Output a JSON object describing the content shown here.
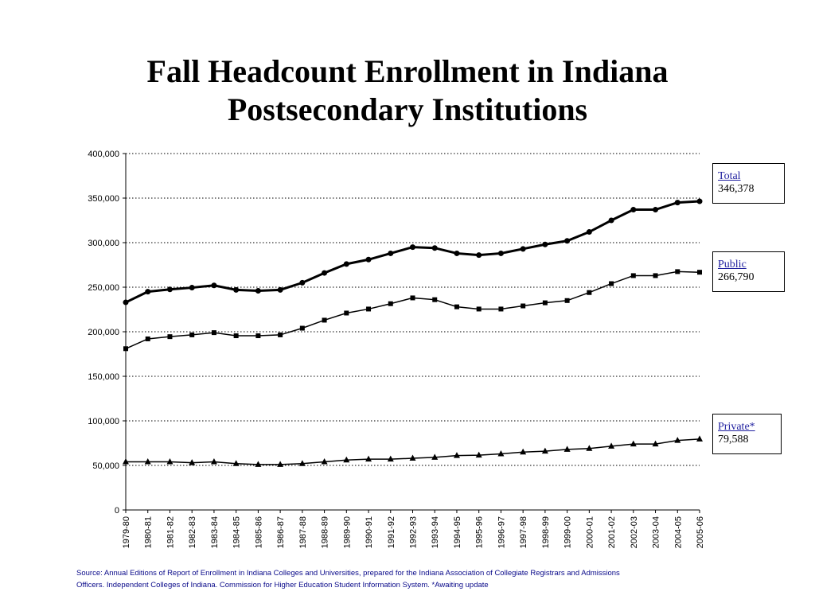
{
  "title": {
    "line1": "Fall Headcount Enrollment in Indiana",
    "line2": "Postsecondary Institutions"
  },
  "legend": [
    {
      "name": "Total",
      "value": "346,378"
    },
    {
      "name": "Public",
      "value": "266,790"
    },
    {
      "name": "Private*",
      "value": "79,588"
    }
  ],
  "source": {
    "line1": "Source:  Annual Editions of Report of Enrollment in Indiana Colleges and Universities, prepared for the Indiana Association of Collegiate Registrars and Admissions",
    "line2": "Officers.  Independent Colleges of Indiana.  Commission for Higher Education Student Information System. *Awaiting update"
  },
  "chart_data": {
    "type": "line",
    "title": "Fall Headcount Enrollment in Indiana Postsecondary Institutions",
    "xlabel": "",
    "ylabel": "",
    "ylim": [
      0,
      400000
    ],
    "yticks": [
      0,
      50000,
      100000,
      150000,
      200000,
      250000,
      300000,
      350000,
      400000
    ],
    "ytick_labels": [
      "0",
      "50,000",
      "100,000",
      "150,000",
      "200,000",
      "250,000",
      "300,000",
      "350,000",
      "400,000"
    ],
    "grid": "horizontal dotted",
    "legend_position": "right",
    "categories": [
      "1979-80",
      "1980-81",
      "1981-82",
      "1982-83",
      "1983-84",
      "1984-85",
      "1985-86",
      "1986-87",
      "1987-88",
      "1988-89",
      "1989-90",
      "1990-91",
      "1991-92",
      "1992-93",
      "1993-94",
      "1994-95",
      "1995-96",
      "1996-97",
      "1997-98",
      "1998-99",
      "1999-00",
      "2000-01",
      "2001-02",
      "2002-03",
      "2003-04",
      "2004-05",
      "2005-06"
    ],
    "series": [
      {
        "name": "Total",
        "marker": "circle",
        "values": [
          233000,
          245000,
          247500,
          249500,
          252000,
          247000,
          246000,
          247000,
          255000,
          266000,
          276000,
          281000,
          288000,
          295000,
          294000,
          288000,
          286000,
          288000,
          293000,
          298000,
          302000,
          312000,
          325000,
          337000,
          337000,
          345000,
          346378
        ]
      },
      {
        "name": "Public",
        "marker": "square",
        "values": [
          181000,
          192000,
          194500,
          196500,
          199000,
          195500,
          195500,
          196500,
          204000,
          213000,
          221000,
          225500,
          231500,
          238000,
          236000,
          228000,
          225500,
          225500,
          229000,
          232500,
          235000,
          244000,
          254000,
          263000,
          263000,
          267500,
          266790
        ]
      },
      {
        "name": "Private*",
        "marker": "triangle",
        "values": [
          54000,
          54000,
          54000,
          53000,
          54000,
          52000,
          51000,
          51000,
          52000,
          54000,
          56000,
          57000,
          57000,
          58000,
          59000,
          61000,
          61500,
          63000,
          65000,
          66000,
          68000,
          69000,
          71500,
          74000,
          74000,
          78000,
          79588
        ]
      }
    ]
  }
}
